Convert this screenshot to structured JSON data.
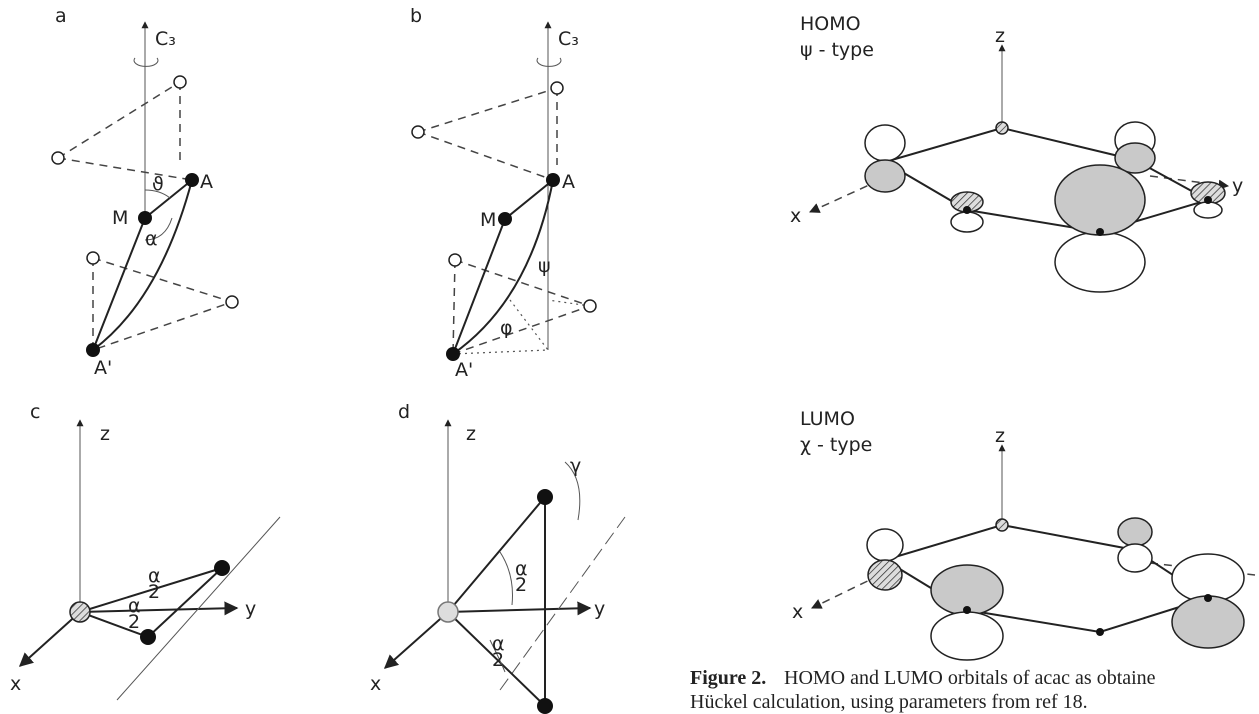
{
  "panels": [
    {
      "label": "a",
      "axis": "C₃",
      "points": [
        "M",
        "A",
        "A'"
      ],
      "angles": [
        "ϑ",
        "α"
      ]
    },
    {
      "label": "b",
      "axis": "C₃",
      "points": [
        "M",
        "A",
        "A'"
      ],
      "angles": [
        "ψ",
        "φ"
      ]
    },
    {
      "label": "c",
      "axes": [
        "z",
        "y",
        "x"
      ],
      "angle_labels": [
        {
          "num": "α",
          "den": "2"
        },
        {
          "num": "α",
          "den": "2"
        }
      ]
    },
    {
      "label": "d",
      "axes": [
        "z",
        "y",
        "x"
      ],
      "angle_labels": [
        {
          "num": "α",
          "den": "2"
        },
        {
          "num": "α",
          "den": "2"
        }
      ],
      "twist": "γ"
    }
  ],
  "orbitals": [
    {
      "name": "HOMO",
      "type": "ψ - type",
      "axes": [
        "z",
        "y",
        "x"
      ]
    },
    {
      "name": "LUMO",
      "type": "χ - type",
      "axes": [
        "z",
        "x"
      ]
    }
  ],
  "caption": {
    "figure": "Figure 2.",
    "lines": [
      "HOMO and LUMO orbitals of acac as obtaine",
      "Hückel calculation, using parameters from ref 18."
    ]
  }
}
